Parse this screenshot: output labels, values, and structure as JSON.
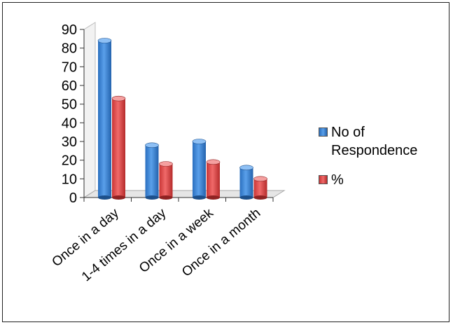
{
  "chart_data": {
    "type": "bar",
    "style": "3d-clustered-column",
    "categories": [
      "Once in a day",
      "1-4 times in a day",
      "Once in a week",
      "Once in a month"
    ],
    "series": [
      {
        "name": "No of Respondence",
        "values": [
          84,
          28,
          30,
          16
        ],
        "color": "#3d85d6"
      },
      {
        "name": "%",
        "values": [
          53,
          18,
          19,
          10
        ],
        "color": "#e04848"
      }
    ],
    "ylim": [
      0,
      90
    ],
    "yticks": [
      0,
      10,
      20,
      30,
      40,
      50,
      60,
      70,
      80,
      90
    ],
    "title": "",
    "xlabel": "",
    "ylabel": "",
    "legend_position": "right",
    "grid": false
  },
  "legend": {
    "items": [
      {
        "label": "No of\nRespondence"
      },
      {
        "label": "%"
      }
    ]
  }
}
